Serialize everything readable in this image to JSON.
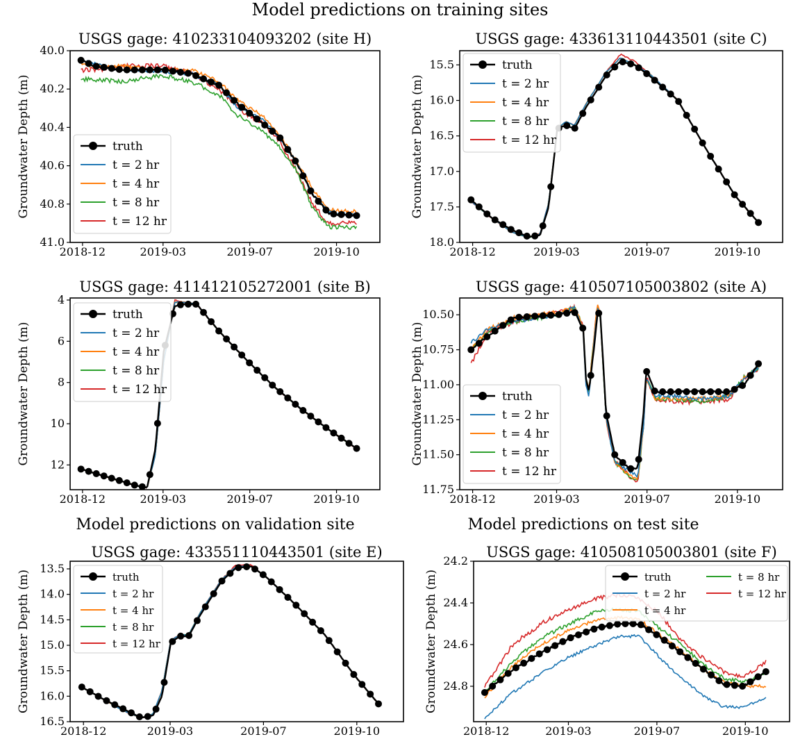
{
  "figure": {
    "section_titles": [
      "Model predictions on training sites",
      "Model predictions on validation site",
      "Model predictions on test site"
    ]
  },
  "series_colors": {
    "truth": "#000000",
    "t = 2 hr": "#1f77b4",
    "t = 4 hr": "#ff7f0e",
    "t = 8 hr": "#2ca02c",
    "t = 12 hr": "#d62728"
  },
  "chart_data": [
    {
      "type": "line",
      "title": "USGS gage: 410233104093202 (site H)",
      "ylabel": "Groundwater Depth (m)",
      "y_inverted": true,
      "ylim": [
        40.0,
        41.0
      ],
      "x_ticks": [
        "2018-12",
        "2019-03",
        "2019-07",
        "2019-10"
      ],
      "y_ticks": [
        40.0,
        40.2,
        40.4,
        40.6,
        40.8,
        41.0
      ],
      "legend": "lower-left",
      "x": [
        0,
        0.05,
        0.15,
        0.3,
        0.4,
        0.5,
        0.57,
        0.66,
        0.72,
        0.78,
        0.84,
        0.9,
        1.0
      ],
      "series": [
        {
          "name": "truth",
          "marker": "o",
          "values": [
            40.05,
            40.08,
            40.1,
            40.1,
            40.12,
            40.18,
            40.28,
            40.38,
            40.45,
            40.58,
            40.75,
            40.85,
            40.86
          ]
        },
        {
          "name": "t = 2 hr",
          "values": [
            40.05,
            40.07,
            40.1,
            40.11,
            40.12,
            40.18,
            40.3,
            40.36,
            40.45,
            40.58,
            40.75,
            40.84,
            40.86
          ]
        },
        {
          "name": "t = 4 hr",
          "values": [
            40.07,
            40.08,
            40.08,
            40.1,
            40.1,
            40.16,
            40.26,
            40.34,
            40.44,
            40.57,
            40.72,
            40.83,
            40.84
          ]
        },
        {
          "name": "t = 8 hr",
          "values": [
            40.15,
            40.15,
            40.16,
            40.13,
            40.16,
            40.23,
            40.34,
            40.42,
            40.5,
            40.62,
            40.82,
            40.92,
            40.92
          ]
        },
        {
          "name": "t = 12 hr",
          "values": [
            40.1,
            40.1,
            40.08,
            40.08,
            40.12,
            40.2,
            40.3,
            40.38,
            40.47,
            40.62,
            40.8,
            40.9,
            40.9
          ]
        }
      ]
    },
    {
      "type": "line",
      "title": "USGS gage: 433613110443501 (site C)",
      "ylabel": "Groundwater Depth (m)",
      "y_inverted": true,
      "ylim": [
        15.3,
        18.0
      ],
      "x_ticks": [
        "2018-12",
        "2019-03",
        "2019-07",
        "2019-10"
      ],
      "y_ticks": [
        15.5,
        16.0,
        16.5,
        17.0,
        17.5,
        18.0
      ],
      "legend": "upper-left",
      "x": [
        0,
        0.07,
        0.14,
        0.2,
        0.24,
        0.27,
        0.3,
        0.33,
        0.36,
        0.4,
        0.47,
        0.52,
        0.57,
        0.62,
        0.72,
        0.82,
        0.92,
        1.0
      ],
      "series": [
        {
          "name": "truth",
          "marker": "o",
          "values": [
            17.4,
            17.65,
            17.82,
            17.92,
            17.9,
            17.5,
            16.4,
            16.35,
            16.4,
            16.1,
            15.65,
            15.45,
            15.5,
            15.65,
            16.0,
            16.7,
            17.35,
            17.72
          ]
        },
        {
          "name": "t = 2 hr",
          "values": [
            17.42,
            17.65,
            17.85,
            17.93,
            17.88,
            17.45,
            16.4,
            16.3,
            16.35,
            16.05,
            15.6,
            15.4,
            15.5,
            15.62,
            16.0,
            16.7,
            17.35,
            17.72
          ]
        },
        {
          "name": "t = 4 hr",
          "values": [
            17.42,
            17.65,
            17.85,
            17.93,
            17.88,
            17.45,
            16.4,
            16.3,
            16.35,
            16.05,
            15.6,
            15.4,
            15.5,
            15.62,
            16.0,
            16.7,
            17.35,
            17.72
          ]
        },
        {
          "name": "t = 8 hr",
          "values": [
            17.42,
            17.65,
            17.85,
            17.93,
            17.88,
            17.45,
            16.4,
            16.3,
            16.35,
            16.05,
            15.6,
            15.4,
            15.5,
            15.62,
            16.0,
            16.7,
            17.35,
            17.72
          ]
        },
        {
          "name": "t = 12 hr",
          "values": [
            17.42,
            17.65,
            17.85,
            17.93,
            17.88,
            17.45,
            16.4,
            16.3,
            16.35,
            16.05,
            15.6,
            15.35,
            15.45,
            15.62,
            16.0,
            16.7,
            17.35,
            17.72
          ]
        }
      ]
    },
    {
      "type": "line",
      "title": "USGS gage: 411412105272001 (site B)",
      "ylabel": "Groundwater Depth (m)",
      "y_inverted": true,
      "ylim": [
        3.9,
        13.2
      ],
      "x_ticks": [
        "2018-12",
        "2019-03",
        "2019-07",
        "2019-10"
      ],
      "y_ticks": [
        4,
        6,
        8,
        10,
        12
      ],
      "legend": "upper-left",
      "x": [
        0,
        0.1,
        0.2,
        0.24,
        0.27,
        0.3,
        0.34,
        0.37,
        0.42,
        0.5,
        0.6,
        0.7,
        0.8,
        0.9,
        1.0
      ],
      "series": [
        {
          "name": "truth",
          "marker": "o",
          "values": [
            12.2,
            12.6,
            13.0,
            13.1,
            11.2,
            6.5,
            4.3,
            4.2,
            4.2,
            5.5,
            6.9,
            8.2,
            9.3,
            10.3,
            11.2
          ]
        },
        {
          "name": "t = 2 hr",
          "values": [
            12.2,
            12.6,
            13.0,
            13.1,
            11.5,
            7.0,
            4.1,
            4.1,
            4.2,
            5.5,
            6.9,
            8.2,
            9.3,
            10.3,
            11.2
          ]
        },
        {
          "name": "t = 4 hr",
          "values": [
            12.2,
            12.6,
            13.0,
            13.1,
            11.5,
            7.0,
            4.1,
            4.1,
            4.2,
            5.5,
            6.9,
            8.2,
            9.3,
            10.3,
            11.2
          ]
        },
        {
          "name": "t = 8 hr",
          "values": [
            12.2,
            12.6,
            13.0,
            13.1,
            11.5,
            7.0,
            4.1,
            4.1,
            4.2,
            5.5,
            6.9,
            8.2,
            9.3,
            10.3,
            11.2
          ]
        },
        {
          "name": "t = 12 hr",
          "values": [
            12.2,
            12.6,
            13.0,
            13.1,
            11.5,
            7.0,
            4.0,
            4.1,
            4.2,
            5.5,
            6.9,
            8.2,
            9.3,
            10.3,
            11.2
          ]
        }
      ]
    },
    {
      "type": "line",
      "title": "USGS gage: 410507105003802 (site A)",
      "ylabel": "Groundwater Depth (m)",
      "y_inverted": true,
      "ylim": [
        10.38,
        11.75
      ],
      "x_ticks": [
        "2018-12",
        "2019-03",
        "2019-07",
        "2019-10"
      ],
      "y_ticks": [
        10.5,
        10.75,
        11.0,
        11.25,
        11.5,
        11.75
      ],
      "legend": "lower-left",
      "x": [
        0,
        0.06,
        0.15,
        0.3,
        0.36,
        0.39,
        0.4,
        0.41,
        0.43,
        0.44,
        0.45,
        0.47,
        0.5,
        0.55,
        0.58,
        0.6,
        0.61,
        0.64,
        0.7,
        0.8,
        0.9,
        0.95,
        1.0
      ],
      "series": [
        {
          "name": "truth",
          "marker": "o",
          "values": [
            10.75,
            10.65,
            10.52,
            10.5,
            10.48,
            10.6,
            10.95,
            11.05,
            10.7,
            10.48,
            10.5,
            11.2,
            11.5,
            11.6,
            11.6,
            11.2,
            10.9,
            11.05,
            11.05,
            11.05,
            11.05,
            11.0,
            10.85
          ]
        },
        {
          "name": "t = 2 hr",
          "values": [
            10.7,
            10.6,
            10.55,
            10.5,
            10.45,
            10.6,
            11.0,
            11.1,
            10.65,
            10.45,
            10.5,
            11.25,
            11.55,
            11.62,
            11.65,
            11.3,
            10.95,
            11.08,
            11.08,
            11.1,
            11.08,
            10.95,
            10.88
          ]
        },
        {
          "name": "t = 4 hr",
          "values": [
            10.75,
            10.6,
            10.52,
            10.48,
            10.45,
            10.58,
            10.95,
            11.05,
            10.62,
            10.42,
            10.5,
            11.25,
            11.55,
            11.65,
            11.68,
            11.3,
            10.95,
            11.1,
            11.1,
            11.1,
            11.08,
            10.95,
            10.88
          ]
        },
        {
          "name": "t = 8 hr",
          "values": [
            10.75,
            10.62,
            10.55,
            10.5,
            10.45,
            10.58,
            10.95,
            11.05,
            10.62,
            10.42,
            10.52,
            11.25,
            11.55,
            11.65,
            11.7,
            11.3,
            10.95,
            11.1,
            11.1,
            11.12,
            11.08,
            10.95,
            10.88
          ]
        },
        {
          "name": "t = 12 hr",
          "values": [
            10.85,
            10.62,
            10.55,
            10.48,
            10.45,
            10.58,
            10.95,
            11.05,
            10.62,
            10.42,
            10.52,
            11.25,
            11.55,
            11.65,
            11.7,
            11.3,
            10.95,
            11.1,
            11.12,
            11.12,
            11.1,
            10.95,
            10.88
          ]
        }
      ]
    },
    {
      "type": "line",
      "title": "USGS gage: 433551110443501 (site E)",
      "ylabel": "Groundwater Depth (m)",
      "y_inverted": true,
      "ylim": [
        13.35,
        16.5
      ],
      "x_ticks": [
        "2018-12",
        "2019-03",
        "2019-07",
        "2019-10"
      ],
      "y_ticks": [
        13.5,
        14.0,
        14.5,
        15.0,
        15.5,
        16.0,
        16.5
      ],
      "legend": "upper-left",
      "x": [
        0,
        0.07,
        0.14,
        0.2,
        0.24,
        0.27,
        0.3,
        0.33,
        0.36,
        0.4,
        0.47,
        0.52,
        0.57,
        0.62,
        0.72,
        0.82,
        0.92,
        1.0
      ],
      "series": [
        {
          "name": "truth",
          "marker": "o",
          "values": [
            15.82,
            16.05,
            16.25,
            16.42,
            16.38,
            16.0,
            14.95,
            14.82,
            14.82,
            14.4,
            13.75,
            13.48,
            13.45,
            13.65,
            14.2,
            14.8,
            15.6,
            16.15
          ]
        },
        {
          "name": "t = 2 hr",
          "values": [
            15.82,
            16.05,
            16.28,
            16.43,
            16.35,
            15.9,
            14.9,
            14.8,
            14.8,
            14.35,
            13.72,
            13.45,
            13.45,
            13.65,
            14.2,
            14.8,
            15.6,
            16.15
          ]
        },
        {
          "name": "t = 4 hr",
          "values": [
            15.82,
            16.05,
            16.28,
            16.43,
            16.35,
            15.9,
            14.9,
            14.8,
            14.8,
            14.35,
            13.72,
            13.45,
            13.45,
            13.65,
            14.2,
            14.8,
            15.6,
            16.15
          ]
        },
        {
          "name": "t = 8 hr",
          "values": [
            15.82,
            16.05,
            16.28,
            16.43,
            16.35,
            15.9,
            14.9,
            14.8,
            14.8,
            14.35,
            13.72,
            13.45,
            13.45,
            13.65,
            14.2,
            14.8,
            15.6,
            16.15
          ]
        },
        {
          "name": "t = 12 hr",
          "values": [
            15.82,
            16.05,
            16.28,
            16.43,
            16.35,
            15.9,
            14.9,
            14.8,
            14.8,
            14.35,
            13.72,
            13.42,
            13.42,
            13.65,
            14.2,
            14.8,
            15.6,
            16.15
          ]
        }
      ]
    },
    {
      "type": "line",
      "title": "USGS gage: 410508105003801 (site F)",
      "ylabel": "Groundwater Depth (m)",
      "y_inverted": true,
      "ylim": [
        24.2,
        24.97
      ],
      "x_ticks": [
        "2018-12",
        "2019-03",
        "2019-07",
        "2019-10"
      ],
      "y_ticks": [
        24.2,
        24.4,
        24.6,
        24.8
      ],
      "legend": "upper-right",
      "legend_columns": 2,
      "x": [
        0,
        0.1,
        0.2,
        0.3,
        0.4,
        0.48,
        0.55,
        0.62,
        0.7,
        0.78,
        0.85,
        0.92,
        1.0
      ],
      "series": [
        {
          "name": "truth",
          "marker": "o",
          "values": [
            24.83,
            24.72,
            24.64,
            24.57,
            24.52,
            24.5,
            24.5,
            24.56,
            24.64,
            24.72,
            24.79,
            24.8,
            24.73
          ]
        },
        {
          "name": "t = 2 hr",
          "values": [
            24.95,
            24.83,
            24.74,
            24.66,
            24.6,
            24.56,
            24.56,
            24.66,
            24.76,
            24.85,
            24.9,
            24.9,
            24.86
          ]
        },
        {
          "name": "t = 4 hr",
          "values": [
            24.85,
            24.7,
            24.6,
            24.53,
            24.48,
            24.47,
            24.48,
            24.55,
            24.63,
            24.72,
            24.78,
            24.8,
            24.8
          ]
        },
        {
          "name": "t = 8 hr",
          "values": [
            24.83,
            24.68,
            24.57,
            24.5,
            24.44,
            24.43,
            24.44,
            24.52,
            24.6,
            24.7,
            24.76,
            24.78,
            24.74
          ]
        },
        {
          "name": "t = 12 hr",
          "values": [
            24.8,
            24.6,
            24.5,
            24.43,
            24.38,
            24.36,
            24.38,
            24.45,
            24.58,
            24.67,
            24.73,
            24.76,
            24.68
          ]
        }
      ]
    }
  ]
}
